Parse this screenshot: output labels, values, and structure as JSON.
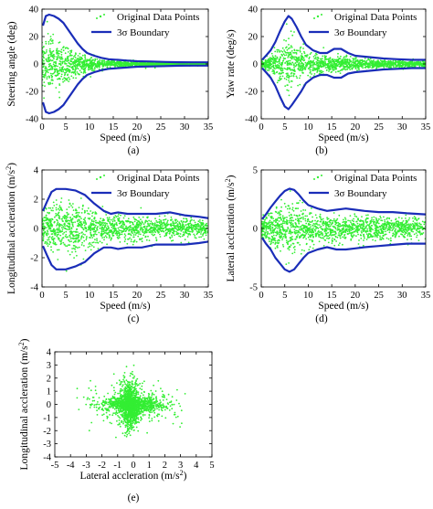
{
  "colors": {
    "points": "#33ee33",
    "boundary": "#1a2db8",
    "axis": "#000000",
    "background": "#ffffff"
  },
  "chart_data": [
    {
      "id": "a",
      "type": "scatter",
      "caption": "(a)",
      "xlabel": "Speed (m/s)",
      "ylabel": "Steering angle (deg)",
      "ylabel_sup": "",
      "xlim": [
        0,
        35
      ],
      "ylim": [
        -40,
        40
      ],
      "xticks": [
        0,
        5,
        10,
        15,
        20,
        25,
        30,
        35
      ],
      "yticks": [
        -40,
        -20,
        0,
        20,
        40
      ],
      "legend": {
        "points": "Original Data Points",
        "boundary": "3σ Boundary",
        "position": "top-right"
      },
      "boundary": {
        "x": [
          0.2,
          0.8,
          1.5,
          2.5,
          3.5,
          4.5,
          5.5,
          6.5,
          7.5,
          8.5,
          9.5,
          11,
          12.5,
          14,
          16,
          18,
          20,
          23,
          26,
          29,
          32,
          35
        ],
        "upper": [
          28,
          35,
          36,
          35,
          33,
          30,
          25,
          20,
          15,
          11,
          8,
          6,
          4.5,
          3.5,
          3,
          2.5,
          2,
          1.8,
          1.5,
          1.3,
          1.2,
          1.2
        ],
        "lower": [
          -28,
          -35,
          -36,
          -35,
          -33,
          -30,
          -25,
          -20,
          -15,
          -11,
          -8,
          -6,
          -4.5,
          -3.5,
          -3,
          -2.5,
          -2,
          -1.8,
          -1.5,
          -1.3,
          -1.2,
          -1.2
        ]
      },
      "points_spread": {
        "x": [
          0,
          2,
          4,
          6,
          8,
          10,
          14,
          20,
          27,
          35
        ],
        "sigma": [
          9,
          9,
          8,
          6,
          4,
          2.5,
          1.2,
          0.8,
          0.6,
          0.5
        ]
      }
    },
    {
      "id": "b",
      "type": "scatter",
      "caption": "(b)",
      "xlabel": "Speed (m/s)",
      "ylabel": "Yaw rate (deg/s)",
      "ylabel_sup": "",
      "xlim": [
        0,
        35
      ],
      "ylim": [
        -40,
        40
      ],
      "xticks": [
        0,
        5,
        10,
        15,
        20,
        25,
        30,
        35
      ],
      "yticks": [
        -40,
        -20,
        0,
        20,
        40
      ],
      "legend": {
        "points": "Original Data Points",
        "boundary": "3σ Boundary",
        "position": "top-right"
      },
      "boundary": {
        "x": [
          0.2,
          1,
          2,
          3,
          4,
          5,
          5.8,
          6.5,
          7.5,
          8.5,
          9.5,
          11,
          12.5,
          14,
          15.5,
          17,
          18.5,
          20,
          23,
          26,
          29,
          32,
          35
        ],
        "upper": [
          3,
          6,
          10,
          16,
          24,
          31,
          35,
          33,
          27,
          20,
          14,
          10,
          8,
          8,
          11,
          11,
          8,
          6,
          5,
          4,
          3.5,
          3,
          3
        ],
        "lower": [
          -3,
          -6,
          -10,
          -16,
          -24,
          -31,
          -33,
          -30,
          -25,
          -20,
          -14,
          -10,
          -8,
          -8,
          -10,
          -10,
          -7,
          -6,
          -5,
          -4,
          -3.5,
          -3,
          -3
        ]
      },
      "points_spread": {
        "x": [
          0,
          2,
          4,
          6,
          8,
          10,
          14,
          20,
          27,
          35
        ],
        "sigma": [
          1.5,
          3,
          7,
          10,
          7,
          4,
          3,
          2,
          1.3,
          1
        ]
      }
    },
    {
      "id": "c",
      "type": "scatter",
      "caption": "(c)",
      "xlabel": "Speed (m/s)",
      "ylabel": "Longitudinal accleration (m/s",
      "ylabel_sup": "2",
      "xlim": [
        0,
        35
      ],
      "ylim": [
        -4,
        4
      ],
      "xticks": [
        0,
        5,
        10,
        15,
        20,
        25,
        30,
        35
      ],
      "yticks": [
        -4,
        -2,
        0,
        2,
        4
      ],
      "legend": {
        "points": "Original Data Points",
        "boundary": "3σ Boundary",
        "position": "top-right"
      },
      "boundary": {
        "x": [
          0.2,
          1,
          2,
          3,
          5,
          7,
          9,
          11,
          13,
          14.5,
          16,
          18,
          21,
          24,
          27,
          30,
          33,
          35
        ],
        "upper": [
          1.2,
          1.8,
          2.5,
          2.7,
          2.7,
          2.6,
          2.3,
          1.7,
          1.2,
          1.0,
          1.1,
          1.0,
          1.0,
          1.0,
          1.1,
          0.9,
          0.8,
          0.7
        ],
        "lower": [
          -1.2,
          -1.8,
          -2.5,
          -2.8,
          -2.8,
          -2.6,
          -2.3,
          -1.7,
          -1.3,
          -1.3,
          -1.4,
          -1.3,
          -1.3,
          -1.1,
          -1.1,
          -1.1,
          -1.0,
          -0.9
        ]
      },
      "points_spread": {
        "x": [
          0,
          3,
          6,
          9,
          12,
          16,
          22,
          28,
          35
        ],
        "sigma": [
          0.5,
          0.85,
          0.85,
          0.75,
          0.5,
          0.42,
          0.38,
          0.33,
          0.28
        ]
      }
    },
    {
      "id": "d",
      "type": "scatter",
      "caption": "(d)",
      "xlabel": "Speed (m/s)",
      "ylabel": "Lateral accleration (m/s",
      "ylabel_sup": "2",
      "xlim": [
        0,
        35
      ],
      "ylim": [
        -5,
        5
      ],
      "xticks": [
        0,
        5,
        10,
        15,
        20,
        25,
        30,
        35
      ],
      "yticks": [
        -5,
        0,
        5
      ],
      "legend": {
        "points": "Original Data Points",
        "boundary": "3σ Boundary",
        "position": "top-right"
      },
      "boundary": {
        "x": [
          0.2,
          1,
          2,
          3,
          4,
          5,
          6,
          7,
          8,
          9,
          10,
          12,
          14,
          16,
          18,
          20,
          22,
          25,
          28,
          31,
          35
        ],
        "upper": [
          0.8,
          1.2,
          1.8,
          2.3,
          2.8,
          3.2,
          3.4,
          3.3,
          2.9,
          2.4,
          2.0,
          1.7,
          1.5,
          1.6,
          1.7,
          1.6,
          1.5,
          1.4,
          1.4,
          1.3,
          1.2
        ],
        "lower": [
          -0.8,
          -1.3,
          -1.8,
          -2.5,
          -3.0,
          -3.5,
          -3.7,
          -3.5,
          -3.0,
          -2.5,
          -2.1,
          -1.8,
          -1.6,
          -1.8,
          -1.8,
          -1.7,
          -1.6,
          -1.5,
          -1.4,
          -1.3,
          -1.3
        ]
      },
      "points_spread": {
        "x": [
          0,
          3,
          6,
          9,
          12,
          16,
          22,
          28,
          35
        ],
        "sigma": [
          0.4,
          0.85,
          1.1,
          0.8,
          0.6,
          0.55,
          0.5,
          0.45,
          0.4
        ]
      }
    },
    {
      "id": "e",
      "type": "scatter",
      "caption": "(e)",
      "xlabel": "Lateral accleration (m/s",
      "xlabel_sup": "2",
      "ylabel": "Longitudinal accleration (m/s",
      "ylabel_sup": "2",
      "xlim": [
        -5,
        5
      ],
      "ylim": [
        -4,
        4
      ],
      "xticks": [
        -5,
        -4,
        -3,
        -2,
        -1,
        0,
        1,
        2,
        3,
        4,
        5
      ],
      "yticks": [
        -4,
        -3,
        -2,
        -1,
        0,
        1,
        2,
        3,
        4
      ],
      "legend": null,
      "points_cloud": {
        "x_sigma": 0.7,
        "y_sigma": 0.6,
        "x_range": [
          -4.7,
          4.7
        ],
        "y_range": [
          -3.6,
          3.5
        ]
      }
    }
  ]
}
